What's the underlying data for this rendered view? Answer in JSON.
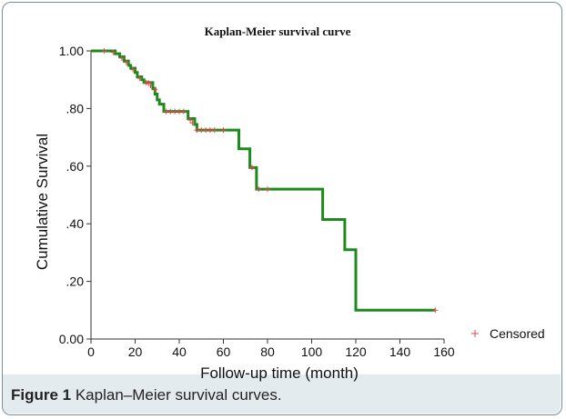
{
  "figure": {
    "number_label": "Figure 1",
    "caption_text": " Kaplan–Meier survival curves."
  },
  "chart_data": {
    "type": "line",
    "title": "Kaplan-Meier survival curve",
    "xlabel": "Follow-up time (month)",
    "ylabel": "Cumulative Survival",
    "xlim": [
      0,
      160
    ],
    "ylim": [
      0,
      1.0
    ],
    "x_ticks": [
      0,
      20,
      40,
      60,
      80,
      100,
      120,
      140,
      160
    ],
    "x_tick_labels": [
      "0",
      "20",
      "40",
      "60",
      "80",
      "100",
      "120",
      "140",
      "160"
    ],
    "y_ticks": [
      0,
      0.2,
      0.4,
      0.6,
      0.8,
      1.0
    ],
    "y_tick_labels": [
      "0.00",
      ".20",
      ".40",
      ".60",
      ".80",
      "1.00"
    ],
    "grid": false,
    "legend": {
      "position": "right",
      "entries": [
        {
          "label": "Censored",
          "marker": "+",
          "color": "#e0474c"
        }
      ]
    },
    "series": [
      {
        "color": "#1e8a1e",
        "steps": [
          [
            0,
            1.0
          ],
          [
            11,
            0.99
          ],
          [
            13,
            0.98
          ],
          [
            15,
            0.965
          ],
          [
            17,
            0.95
          ],
          [
            18,
            0.94
          ],
          [
            20,
            0.925
          ],
          [
            21,
            0.91
          ],
          [
            23,
            0.9
          ],
          [
            24,
            0.89
          ],
          [
            28,
            0.87
          ],
          [
            29,
            0.85
          ],
          [
            30,
            0.83
          ],
          [
            31,
            0.815
          ],
          [
            33,
            0.79
          ],
          [
            44,
            0.765
          ],
          [
            47,
            0.745
          ],
          [
            48,
            0.725
          ],
          [
            67,
            0.66
          ],
          [
            72,
            0.595
          ],
          [
            75,
            0.52
          ],
          [
            105,
            0.415
          ],
          [
            115,
            0.31
          ],
          [
            120,
            0.1
          ],
          [
            156,
            0.1
          ]
        ],
        "censored": [
          [
            6,
            1.0
          ],
          [
            10,
            0.995
          ],
          [
            14,
            0.975
          ],
          [
            16,
            0.96
          ],
          [
            19,
            0.935
          ],
          [
            22,
            0.905
          ],
          [
            25,
            0.89
          ],
          [
            26,
            0.89
          ],
          [
            27,
            0.88
          ],
          [
            29,
            0.865
          ],
          [
            34,
            0.79
          ],
          [
            36,
            0.79
          ],
          [
            38,
            0.79
          ],
          [
            40,
            0.79
          ],
          [
            42,
            0.79
          ],
          [
            45,
            0.76
          ],
          [
            46,
            0.75
          ],
          [
            48,
            0.725
          ],
          [
            50,
            0.725
          ],
          [
            52,
            0.725
          ],
          [
            54,
            0.725
          ],
          [
            56,
            0.725
          ],
          [
            60,
            0.725
          ],
          [
            73,
            0.595
          ],
          [
            76,
            0.52
          ],
          [
            80,
            0.52
          ],
          [
            156,
            0.1
          ]
        ]
      }
    ]
  }
}
